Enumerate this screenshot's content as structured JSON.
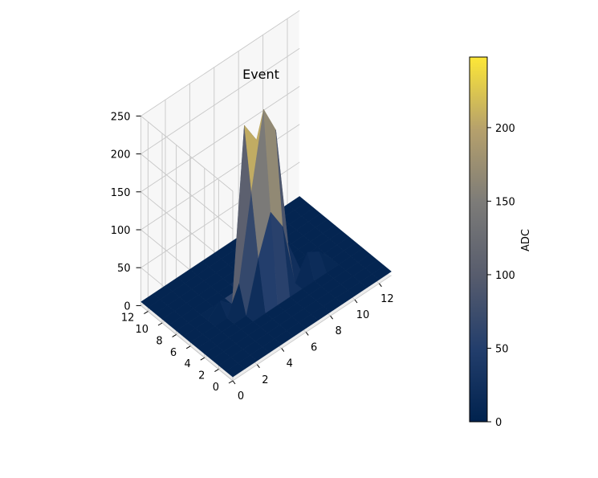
{
  "chart_data": {
    "type": "surface3d",
    "title": "Event",
    "xlabel": "",
    "ylabel": "",
    "zlabel": "",
    "x_ticks": [
      0,
      2,
      4,
      6,
      8,
      10,
      12
    ],
    "y_ticks": [
      0,
      2,
      4,
      6,
      8,
      10,
      12
    ],
    "z_ticks": [
      0,
      50,
      100,
      150,
      200,
      250
    ],
    "xlim": [
      0,
      13
    ],
    "ylim": [
      0,
      13
    ],
    "zlim": [
      0,
      250
    ],
    "colormap": "cividis",
    "colorbar": {
      "label": "ADC",
      "ticks": [
        0,
        50,
        100,
        150,
        200
      ],
      "range": [
        0,
        248
      ]
    },
    "grid": true,
    "surface_peaks": [
      {
        "x": 6,
        "y": 6,
        "z": 248
      },
      {
        "x": 5,
        "y": 7,
        "z": 230
      },
      {
        "x": 7,
        "y": 6,
        "z": 210
      },
      {
        "x": 6,
        "y": 7,
        "z": 200
      },
      {
        "x": 5,
        "y": 6,
        "z": 150
      },
      {
        "x": 7,
        "y": 7,
        "z": 160
      },
      {
        "x": 6,
        "y": 5,
        "z": 120
      },
      {
        "x": 5,
        "y": 5,
        "z": 70
      },
      {
        "x": 7,
        "y": 5,
        "z": 90
      },
      {
        "x": 4,
        "y": 6,
        "z": 40
      },
      {
        "x": 8,
        "y": 6,
        "z": 50
      },
      {
        "x": 6,
        "y": 8,
        "z": 45
      },
      {
        "x": 9,
        "y": 5,
        "z": 35
      },
      {
        "x": 10,
        "y": 5,
        "z": 25
      },
      {
        "x": 3,
        "y": 7,
        "z": 20
      }
    ],
    "baseline_value": 5
  }
}
